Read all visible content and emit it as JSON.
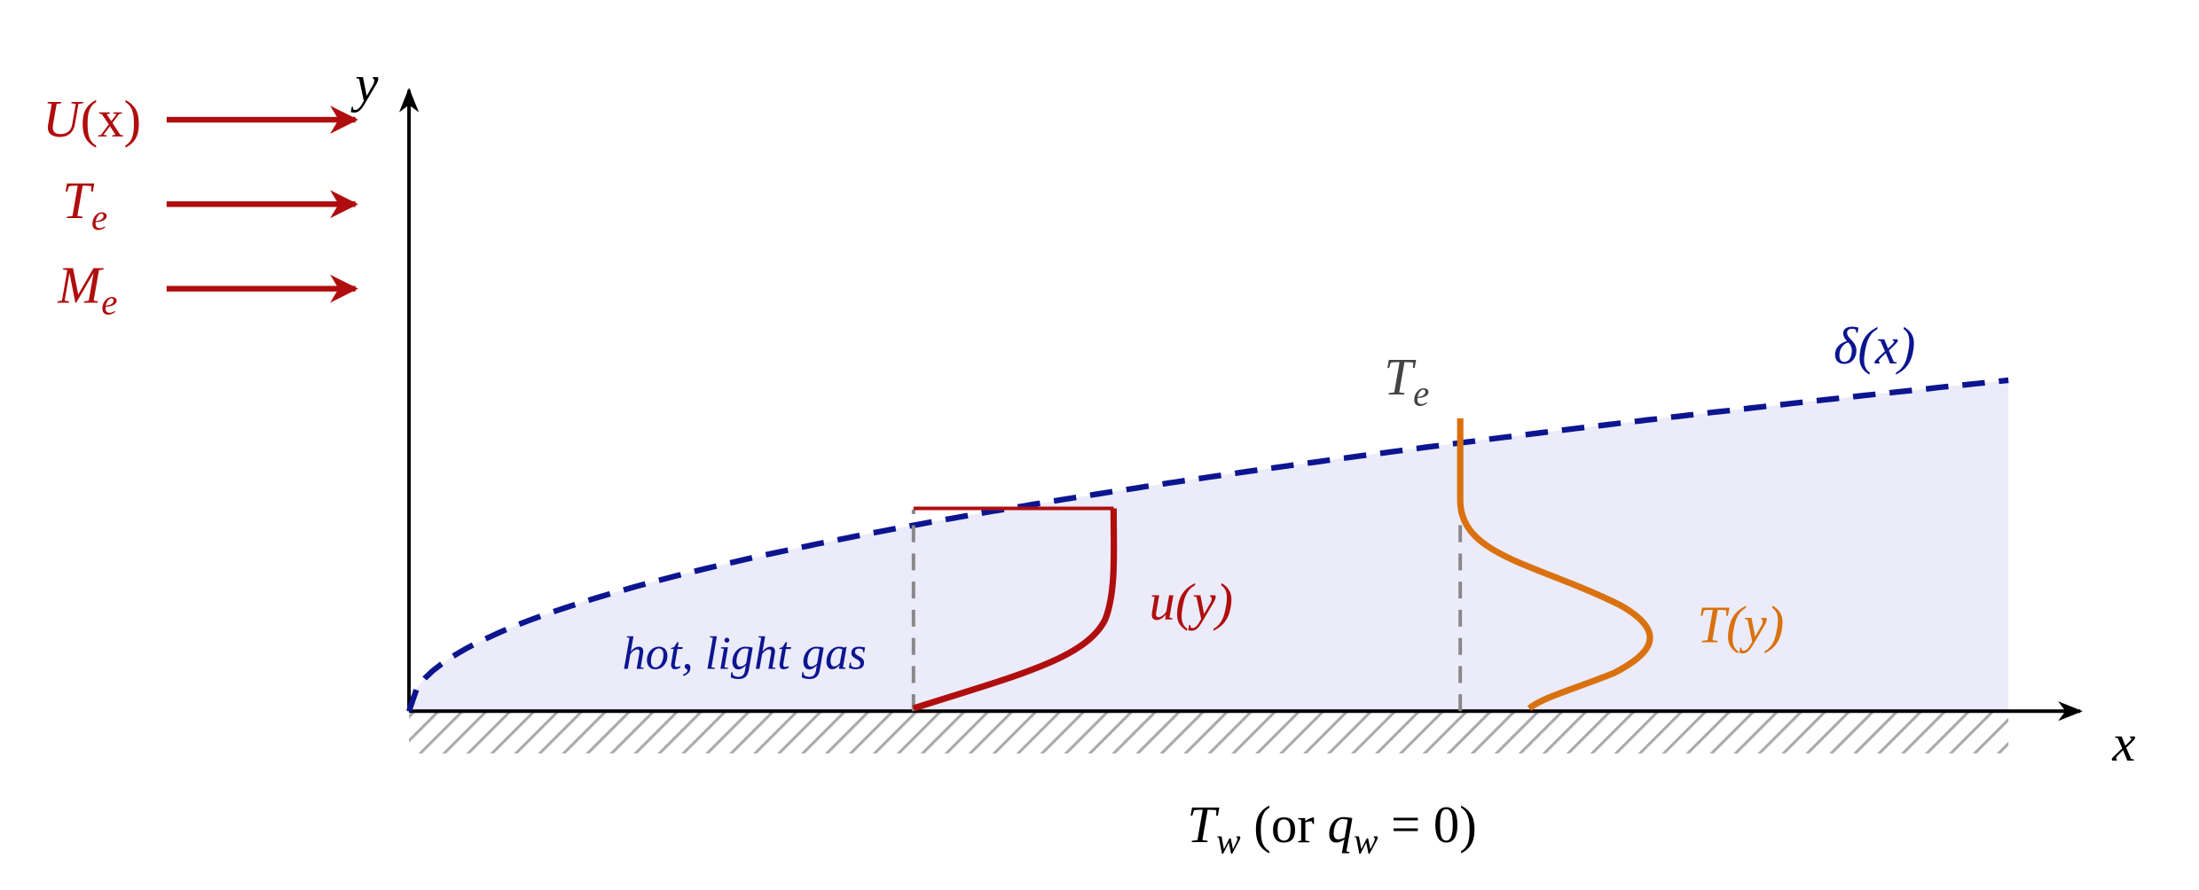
{
  "inflow": [
    {
      "base": "U",
      "rest": "(x)"
    },
    {
      "base": "T",
      "sub": "e"
    },
    {
      "base": "M",
      "sub": "e"
    }
  ],
  "axes": {
    "y": "y",
    "x": "x"
  },
  "boundary_layer": {
    "label": "δ(x)",
    "region": "hot, light gas"
  },
  "velocity_profile": {
    "label": "u(y)"
  },
  "temperature_profile": {
    "label": "T(y)",
    "edge_base": "T",
    "edge_sub": "e"
  },
  "wall_label": {
    "base": "T",
    "sub": "w",
    "open": " (or ",
    "q": "q",
    "q_sub": "w",
    "close": " = 0)"
  }
}
